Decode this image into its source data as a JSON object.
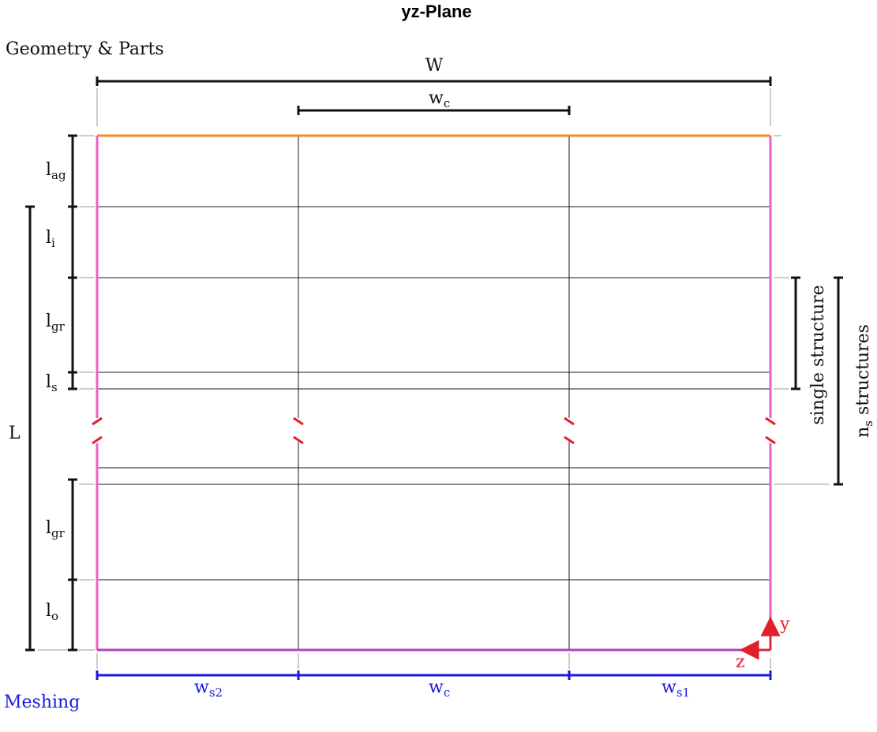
{
  "title": "yz-Plane",
  "sections": {
    "geometry": "Geometry & Parts",
    "meshing": "Meshing"
  },
  "dimensions": {
    "W": "W",
    "wc_main": "w",
    "wc_main_sub": "c",
    "L": "L",
    "lag": "l",
    "lag_sub": "ag",
    "li": "l",
    "li_sub": "i",
    "lgr_top": "l",
    "lgr_top_sub": "gr",
    "ls": "l",
    "ls_sub": "s",
    "lgr_bottom": "l",
    "lgr_bottom_sub": "gr",
    "lo": "l",
    "lo_sub": "o"
  },
  "brackets": {
    "single_structure": "single structure",
    "ns_prefix": "n",
    "ns_sub": "s",
    "ns_suffix": " structures"
  },
  "mesh_labels": {
    "ws2": "w",
    "ws2_sub": "s2",
    "wc": "w",
    "wc_sub": "c",
    "ws1": "w",
    "ws1_sub": "s1"
  },
  "axes": {
    "y": "y",
    "z": "z"
  },
  "colors": {
    "top_edge": "#f08a24",
    "side_edge": "#f060c8",
    "bottom_edge": "#b040c0",
    "mesh": "#1a1adc",
    "axes": "#e0202a",
    "break_marks": "#e0202a",
    "grid": "#1a1a1a"
  }
}
